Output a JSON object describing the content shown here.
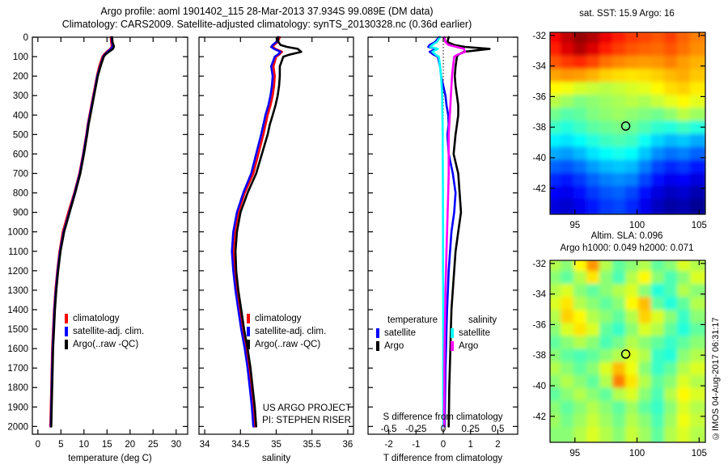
{
  "header": {
    "title_line1": "Argo profile: aoml 1901402_115 28-Mar-2013 37.934S 99.089E (DM data)",
    "title_line2": "Climatology: CARS2009. Satellite-adjusted climatology: synTS_20130328.nc (0.36d earlier)"
  },
  "watermark": "©IMOS 04-Aug-2017 06:31:17",
  "chart_data": [
    {
      "id": "temperature-profile",
      "type": "line",
      "xlabel": "temperature (deg C)",
      "xlim": [
        -1.2,
        32.5
      ],
      "xticks": [
        0,
        5,
        10,
        15,
        20,
        25,
        30
      ],
      "ylim": [
        0,
        2040
      ],
      "yticks": [
        0,
        100,
        200,
        300,
        400,
        500,
        600,
        700,
        800,
        900,
        1000,
        1100,
        1200,
        1300,
        1400,
        1500,
        1600,
        1700,
        1800,
        1900,
        2000
      ],
      "show_ytick_labels": true,
      "depths": [
        0,
        25,
        40,
        50,
        60,
        75,
        90,
        100,
        150,
        200,
        250,
        300,
        350,
        400,
        450,
        500,
        600,
        700,
        800,
        900,
        1000,
        1100,
        1200,
        1300,
        1400,
        1500,
        1600,
        1700,
        1800,
        1900,
        2000
      ],
      "series": [
        {
          "name": "climatology",
          "color": "#ff0000",
          "values": [
            15.8,
            15.9,
            16.0,
            16.0,
            15.7,
            14.9,
            14.3,
            14.0,
            13.3,
            12.8,
            12.4,
            12.0,
            11.6,
            11.2,
            10.8,
            10.5,
            9.8,
            9.0,
            7.9,
            6.6,
            5.4,
            4.7,
            4.2,
            3.8,
            3.5,
            3.3,
            3.1,
            3.0,
            2.9,
            2.8,
            2.7
          ]
        },
        {
          "name": "satellite-adj. clim.",
          "color": "#0000ff",
          "values": [
            16.0,
            16.1,
            16.2,
            16.2,
            15.9,
            15.1,
            14.5,
            14.2,
            13.5,
            12.9,
            12.5,
            12.1,
            11.7,
            11.3,
            10.9,
            10.6,
            9.9,
            9.1,
            8.0,
            6.8,
            5.6,
            4.8,
            4.3,
            3.9,
            3.6,
            3.4,
            3.2,
            3.1,
            3.0,
            2.9,
            2.8
          ]
        },
        {
          "name": "Argo(..raw -QC)",
          "color": "#000000",
          "values": [
            16.1,
            16.2,
            16.4,
            16.5,
            16.3,
            15.4,
            14.6,
            14.3,
            13.6,
            13.0,
            12.6,
            12.2,
            11.8,
            11.4,
            11.0,
            10.7,
            10.0,
            9.2,
            8.1,
            6.9,
            5.7,
            4.9,
            4.4,
            4.0,
            3.7,
            3.5,
            3.3,
            3.2,
            3.1,
            3.0,
            2.9
          ]
        }
      ]
    },
    {
      "id": "salinity-profile",
      "type": "line",
      "xlabel": "salinity",
      "xlim": [
        33.92,
        36.08
      ],
      "xticks": [
        34,
        34.5,
        35,
        35.5,
        36
      ],
      "ylim": [
        0,
        2040
      ],
      "yticks": [
        0,
        100,
        200,
        300,
        400,
        500,
        600,
        700,
        800,
        900,
        1000,
        1100,
        1200,
        1300,
        1400,
        1500,
        1600,
        1700,
        1800,
        1900,
        2000
      ],
      "show_ytick_labels": false,
      "annotation": [
        "US ARGO PROJECT",
        "PI: STEPHEN RISER"
      ],
      "depths": [
        0,
        25,
        40,
        50,
        60,
        75,
        90,
        100,
        150,
        200,
        250,
        300,
        350,
        400,
        450,
        500,
        600,
        700,
        800,
        900,
        1000,
        1100,
        1200,
        1300,
        1400,
        1500,
        1600,
        1700,
        1800,
        1900,
        2000
      ],
      "series": [
        {
          "name": "climatology",
          "color": "#ff0000",
          "values": [
            35.05,
            35.02,
            34.97,
            34.95,
            34.99,
            35.08,
            35.04,
            35.0,
            34.96,
            34.98,
            34.97,
            34.95,
            34.92,
            34.88,
            34.85,
            34.82,
            34.75,
            34.68,
            34.56,
            34.47,
            34.42,
            34.4,
            34.42,
            34.45,
            34.49,
            34.53,
            34.58,
            34.62,
            34.65,
            34.68,
            34.7
          ]
        },
        {
          "name": "satellite-adj. clim.",
          "color": "#0000ff",
          "values": [
            35.03,
            35.0,
            34.95,
            34.93,
            34.97,
            35.06,
            35.02,
            34.98,
            34.93,
            34.95,
            34.94,
            34.92,
            34.89,
            34.85,
            34.82,
            34.79,
            34.72,
            34.65,
            34.54,
            34.45,
            34.4,
            34.38,
            34.4,
            34.43,
            34.47,
            34.51,
            34.56,
            34.6,
            34.63,
            34.66,
            34.68
          ]
        },
        {
          "name": "Argo(..raw -QC)",
          "color": "#000000",
          "values": [
            35.02,
            35.03,
            35.06,
            35.15,
            35.3,
            35.35,
            35.18,
            35.1,
            35.05,
            35.05,
            35.04,
            35.02,
            34.99,
            34.95,
            34.91,
            34.88,
            34.8,
            34.72,
            34.6,
            34.5,
            34.45,
            34.43,
            34.44,
            34.47,
            34.51,
            34.55,
            34.6,
            34.64,
            34.67,
            34.7,
            34.72
          ]
        }
      ]
    },
    {
      "id": "difference-panel",
      "type": "line",
      "xlabel": "T difference from climatology",
      "xlim": [
        -2.76,
        2.73
      ],
      "xticks": [
        -2,
        -1,
        0,
        1,
        2
      ],
      "ylim": [
        0,
        2040
      ],
      "yticks": [
        0,
        100,
        200,
        300,
        400,
        500,
        600,
        700,
        800,
        900,
        1000,
        1100,
        1200,
        1300,
        1400,
        1500,
        1600,
        1700,
        1800,
        1900,
        2000
      ],
      "show_ytick_labels": false,
      "zero_line": true,
      "s_axis": {
        "label": "S difference from climatology",
        "ticks": [
          -0.5,
          -0.25,
          0,
          0.25,
          0.5
        ],
        "scale": 4
      },
      "legend": {
        "columns": [
          {
            "heading": "temperature",
            "items": [
              {
                "label": "satellite",
                "color": "#0000ff"
              },
              {
                "label": "Argo",
                "color": "#000000"
              }
            ]
          },
          {
            "heading": "salinity",
            "items": [
              {
                "label": "satellite",
                "color": "#00ffff"
              },
              {
                "label": "Argo",
                "color": "#ff00ff"
              }
            ]
          }
        ]
      },
      "depths": [
        0,
        25,
        40,
        50,
        60,
        75,
        90,
        100,
        150,
        200,
        250,
        300,
        350,
        400,
        450,
        500,
        600,
        700,
        800,
        900,
        1000,
        1100,
        1200,
        1300,
        1400,
        1500,
        1600,
        1700,
        1800,
        1900,
        2000
      ],
      "series": [
        {
          "name": "satellite T diff",
          "color": "#0000ff",
          "scale": 1,
          "values": [
            -0.15,
            -0.3,
            -0.5,
            -0.55,
            -0.25,
            -0.5,
            -0.35,
            -0.2,
            -0.12,
            -0.08,
            0.0,
            0.08,
            0.12,
            0.18,
            0.2,
            0.15,
            0.2,
            0.35,
            0.45,
            0.4,
            0.3,
            0.25,
            0.2,
            0.17,
            0.14,
            0.12,
            0.1,
            0.08,
            0.07,
            0.06,
            0.05
          ]
        },
        {
          "name": "Argo T diff",
          "color": "#000000",
          "scale": 1,
          "values": [
            0.2,
            0.15,
            0.4,
            0.8,
            1.7,
            0.75,
            0.55,
            0.5,
            0.45,
            0.42,
            0.45,
            0.5,
            0.55,
            0.55,
            0.5,
            0.45,
            0.38,
            0.55,
            0.6,
            0.65,
            0.55,
            0.45,
            0.4,
            0.35,
            0.3,
            0.28,
            0.26,
            0.24,
            0.22,
            0.21,
            0.2
          ]
        },
        {
          "name": "satellite S diff",
          "color": "#00ffff",
          "scale": 4,
          "values": [
            -0.03,
            -0.06,
            -0.1,
            -0.12,
            -0.05,
            -0.1,
            -0.07,
            -0.04,
            -0.03,
            -0.02,
            -0.015,
            -0.01,
            -0.01,
            -0.008,
            -0.006,
            -0.005,
            -0.005,
            -0.004,
            -0.003,
            -0.003,
            -0.002,
            -0.002,
            -0.002,
            -0.001,
            -0.001,
            -0.001,
            0,
            0,
            0,
            0,
            0
          ]
        },
        {
          "name": "Argo S diff",
          "color": "#ff00ff",
          "scale": 4,
          "values": [
            0.01,
            0.02,
            0.05,
            0.12,
            0.19,
            0.2,
            0.13,
            0.1,
            0.09,
            0.08,
            0.075,
            0.07,
            0.065,
            0.06,
            0.055,
            0.05,
            0.05,
            0.05,
            0.045,
            0.04,
            0.035,
            0.03,
            0.025,
            0.02,
            0.018,
            0.015,
            0.012,
            0.01,
            0.01,
            0.008,
            0.008
          ]
        }
      ]
    },
    {
      "id": "sst-map",
      "type": "heatmap",
      "title": "sat. SST: 15.9 Argo: 16",
      "xlim": [
        93,
        105.5
      ],
      "xticks": [
        95,
        100,
        105
      ],
      "ylim": [
        -31.8,
        -43.7
      ],
      "yticks": [
        -32,
        -34,
        -36,
        -38,
        -40,
        -42
      ],
      "show_ytick_labels": true,
      "vmin": 7.5,
      "vmax": 21.5,
      "marker": {
        "lon": 99.09,
        "lat": -37.93
      },
      "grid": [
        [
          19.8,
          20.6,
          21.2,
          20.8,
          20.0,
          19.4,
          19.0,
          18.8,
          18.6,
          18.9,
          18.4,
          18.0
        ],
        [
          19.4,
          20.2,
          20.8,
          20.2,
          19.4,
          18.9,
          18.6,
          18.4,
          18.3,
          18.6,
          18.2,
          17.8
        ],
        [
          18.6,
          19.0,
          19.2,
          18.8,
          18.2,
          17.9,
          17.7,
          17.6,
          17.7,
          18.0,
          17.6,
          17.3
        ],
        [
          17.5,
          17.7,
          17.6,
          17.3,
          16.9,
          16.7,
          16.6,
          16.7,
          16.9,
          17.2,
          17.4,
          17.0
        ],
        [
          16.3,
          16.1,
          15.7,
          15.5,
          15.3,
          15.5,
          15.7,
          15.9,
          16.3,
          16.7,
          16.9,
          16.5
        ],
        [
          15.3,
          14.9,
          14.5,
          14.7,
          14.9,
          15.1,
          15.3,
          15.1,
          15.5,
          15.9,
          16.3,
          15.9
        ],
        [
          14.3,
          13.9,
          14.1,
          14.5,
          14.7,
          14.9,
          14.7,
          14.5,
          14.3,
          14.7,
          15.3,
          14.9
        ],
        [
          13.5,
          13.2,
          13.6,
          14.0,
          14.2,
          14.4,
          14.2,
          13.8,
          13.4,
          13.2,
          13.6,
          13.2
        ],
        [
          12.6,
          12.4,
          12.8,
          13.2,
          13.6,
          13.8,
          13.6,
          12.9,
          12.2,
          11.8,
          12.0,
          11.6
        ],
        [
          11.6,
          11.4,
          11.8,
          12.4,
          12.8,
          13.0,
          12.8,
          12.0,
          11.2,
          10.8,
          11.0,
          10.6
        ],
        [
          10.6,
          10.4,
          10.8,
          11.4,
          11.8,
          12.0,
          11.8,
          11.0,
          10.2,
          9.8,
          10.0,
          9.6
        ],
        [
          9.8,
          9.6,
          10.0,
          10.6,
          11.0,
          11.2,
          11.0,
          10.2,
          9.4,
          9.0,
          9.2,
          8.8
        ],
        [
          9.2,
          9.0,
          9.4,
          10.0,
          10.4,
          10.6,
          10.2,
          9.4,
          8.8,
          8.4,
          8.6,
          8.2
        ],
        [
          8.8,
          8.6,
          9.0,
          9.6,
          10.0,
          10.2,
          9.8,
          9.0,
          8.4,
          8.0,
          8.2,
          7.8
        ]
      ]
    },
    {
      "id": "sla-map",
      "type": "heatmap",
      "title_line1": "Altim. SLA: 0.096",
      "title_line2": "Argo h1000: 0.049 h2000: 0.071",
      "xlim": [
        93,
        105.5
      ],
      "xticks": [
        95,
        100,
        105
      ],
      "ylim": [
        -31.8,
        -43.7
      ],
      "yticks": [
        -32,
        -34,
        -36,
        -38,
        -40,
        -42
      ],
      "show_ytick_labels": true,
      "vmin": -0.175,
      "vmax": 0.325,
      "marker": {
        "lon": 99.09,
        "lat": -37.93
      },
      "grid": [
        [
          0.1,
          0.08,
          0.14,
          0.19,
          0.1,
          0.06,
          0.08,
          0.1,
          0.06,
          0.08,
          0.12,
          0.1
        ],
        [
          0.08,
          0.06,
          0.1,
          0.15,
          0.08,
          0.05,
          0.1,
          0.14,
          0.08,
          0.05,
          0.08,
          0.12
        ],
        [
          0.1,
          0.12,
          0.08,
          0.06,
          0.08,
          0.1,
          0.12,
          0.08,
          0.03,
          0.05,
          0.1,
          0.08
        ],
        [
          0.12,
          0.15,
          0.1,
          0.08,
          0.06,
          0.08,
          0.14,
          0.17,
          0.06,
          0.03,
          0.06,
          0.1
        ],
        [
          0.1,
          0.16,
          0.14,
          0.1,
          0.08,
          0.06,
          0.1,
          0.16,
          0.12,
          0.08,
          0.04,
          0.08
        ],
        [
          0.08,
          0.12,
          0.15,
          0.12,
          0.06,
          0.04,
          0.08,
          0.12,
          0.1,
          0.06,
          0.03,
          0.06
        ],
        [
          0.06,
          0.08,
          0.1,
          0.08,
          0.05,
          0.07,
          0.1,
          0.08,
          0.06,
          0.04,
          0.06,
          0.08
        ],
        [
          0.08,
          0.06,
          0.05,
          0.06,
          0.08,
          0.1,
          0.12,
          0.1,
          0.04,
          0.03,
          0.08,
          0.1
        ],
        [
          0.1,
          0.08,
          0.06,
          0.08,
          0.12,
          0.17,
          0.13,
          0.08,
          0.04,
          0.06,
          0.1,
          0.12
        ],
        [
          0.08,
          0.1,
          0.08,
          0.06,
          0.1,
          0.2,
          0.15,
          0.1,
          0.06,
          0.08,
          0.12,
          0.1
        ],
        [
          0.06,
          0.08,
          0.1,
          0.08,
          0.06,
          0.1,
          0.12,
          0.08,
          0.05,
          0.1,
          0.14,
          0.12
        ],
        [
          0.08,
          0.06,
          0.08,
          0.1,
          0.08,
          0.06,
          0.09,
          0.06,
          0.04,
          0.08,
          0.12,
          0.1
        ],
        [
          0.09,
          0.07,
          0.09,
          0.11,
          0.09,
          0.07,
          0.1,
          0.08,
          0.05,
          0.09,
          0.13,
          0.11
        ],
        [
          0.08,
          0.08,
          0.1,
          0.12,
          0.1,
          0.08,
          0.11,
          0.09,
          0.06,
          0.1,
          0.12,
          0.1
        ]
      ]
    }
  ]
}
